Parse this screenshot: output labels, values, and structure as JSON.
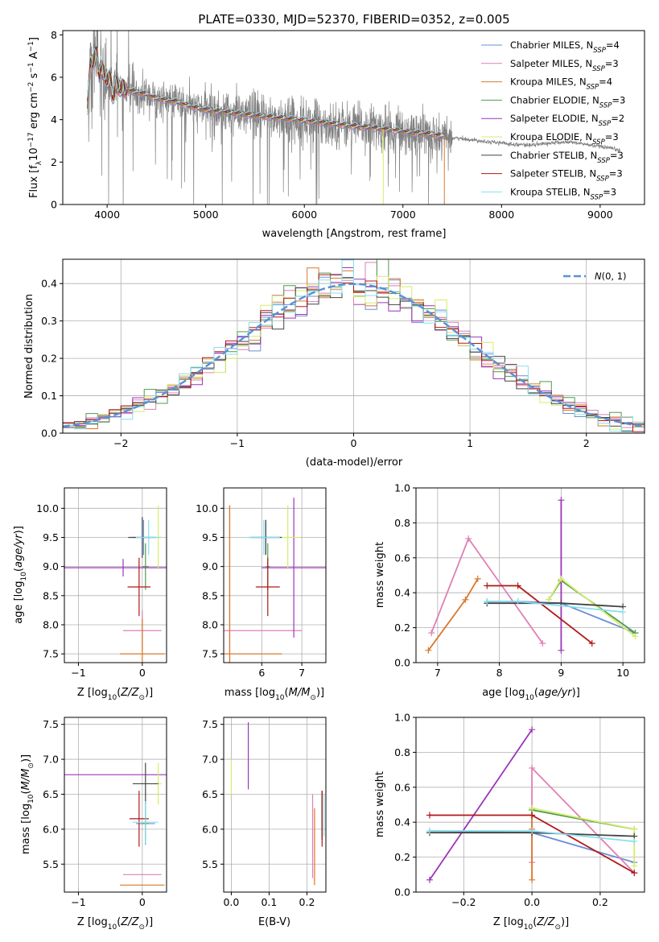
{
  "figure": {
    "title": "PLATE=0330, MJD=52370, FIBERID=0352, z=0.005"
  },
  "models": [
    {
      "name": "Chabrier MILES",
      "nssp": "4",
      "color": "#6b8fd6"
    },
    {
      "name": "Salpeter MILES",
      "nssp": "3",
      "color": "#e07fb5"
    },
    {
      "name": "Kroupa MILES",
      "nssp": "4",
      "color": "#d9782c"
    },
    {
      "name": "Chabrier ELODIE",
      "nssp": "3",
      "color": "#4f9b4f"
    },
    {
      "name": "Salpeter ELODIE",
      "nssp": "2",
      "color": "#9b35b8"
    },
    {
      "name": "Kroupa ELODIE",
      "nssp": "3",
      "color": "#d4ec6a"
    },
    {
      "name": "Chabrier STELIB",
      "nssp": "3",
      "color": "#444444"
    },
    {
      "name": "Salpeter STELIB",
      "nssp": "3",
      "color": "#b01818"
    },
    {
      "name": "Kroupa STELIB",
      "nssp": "3",
      "color": "#86dff0"
    }
  ],
  "chart_data": [
    {
      "id": "spectrum",
      "type": "line",
      "title": "PLATE=0330, MJD=52370, FIBERID=0352, z=0.005",
      "xlabel": "wavelength [Angstrom, rest frame]",
      "ylabel": "Flux [f_λ 10^-17 erg cm^-2 s^-1 A^-1]",
      "xlim": [
        3550,
        9450
      ],
      "ylim": [
        0,
        8.2
      ],
      "xticks": [
        4000,
        5000,
        6000,
        7000,
        8000,
        9000
      ],
      "yticks": [
        0,
        2,
        4,
        6,
        8
      ],
      "legend_position": "top-right",
      "data_color": "#808080",
      "data_range": [
        3800,
        9200
      ],
      "model_range": [
        3800,
        7420
      ],
      "continuum": {
        "x": [
          3800,
          3830,
          3900,
          3950,
          4000,
          4100,
          4200,
          4300,
          4400,
          4500,
          4700,
          4900,
          5100,
          5300,
          5500,
          5700,
          5900,
          6100,
          6300,
          6500,
          6700,
          6900,
          7100,
          7300,
          7500,
          7700,
          7900,
          8100,
          8300,
          8500,
          8700,
          8900,
          9100,
          9200
        ],
        "y": [
          4.6,
          6.6,
          7.1,
          6.3,
          5.9,
          5.6,
          5.4,
          5.3,
          5.2,
          5.0,
          4.85,
          4.55,
          4.4,
          4.3,
          4.2,
          4.1,
          4.0,
          3.9,
          3.8,
          3.7,
          3.6,
          3.5,
          3.4,
          3.3,
          3.15,
          3.05,
          2.95,
          2.85,
          2.8,
          2.9,
          2.95,
          2.8,
          2.65,
          2.55
        ]
      }
    },
    {
      "id": "residual-histogram",
      "type": "histogram",
      "xlabel": "(data-model)/error",
      "ylabel": "Normed distribution",
      "xlim": [
        -2.5,
        2.5
      ],
      "ylim": [
        0,
        0.465
      ],
      "xticks": [
        -2,
        -1,
        0,
        1,
        2
      ],
      "yticks": [
        0.0,
        0.1,
        0.2,
        0.3,
        0.4
      ],
      "bin_width": 0.1,
      "legend": {
        "label": "N(0,1)",
        "position": "top-right",
        "color": "#5b8fd9"
      },
      "reference_curve": "gaussian mean 0 sigma 1"
    },
    {
      "id": "age-vs-Z",
      "type": "scatter",
      "xlabel": "Z [log10(Z/Z⊙)]",
      "ylabel": "age [log10(age/yr)]",
      "xlim": [
        -1.22,
        0.38
      ],
      "ylim": [
        7.35,
        10.35
      ],
      "xticks": [
        -1,
        0
      ],
      "yticks": [
        7.5,
        8.0,
        8.5,
        9.0,
        9.5,
        10.0
      ],
      "points": [
        {
          "model": "Chabrier MILES",
          "x": 0.02,
          "y": 9.5,
          "dx": 0.18,
          "dy": 0.3
        },
        {
          "model": "Salpeter MILES",
          "x": 0.0,
          "y": 7.9,
          "dx": 0.3,
          "dy": 0.35
        },
        {
          "model": "Kroupa MILES",
          "x": 0.0,
          "y": 7.5,
          "dx": 0.35,
          "dy": 0.6
        },
        {
          "model": "Chabrier ELODIE",
          "x": 0.05,
          "y": 9.0,
          "dx": 0.05,
          "dy": 0.4
        },
        {
          "model": "Salpeter ELODIE",
          "x": -0.3,
          "y": 8.98,
          "dx": 0.92,
          "dy": 0.15
        },
        {
          "model": "Kroupa ELODIE",
          "x": 0.25,
          "y": 9.5,
          "dx": 0.08,
          "dy": 0.55
        },
        {
          "model": "Chabrier STELIB",
          "x": 0.0,
          "y": 9.5,
          "dx": 0.22,
          "dy": 0.35
        },
        {
          "model": "Salpeter STELIB",
          "x": -0.05,
          "y": 8.65,
          "dx": 0.18,
          "dy": 0.5
        },
        {
          "model": "Kroupa STELIB",
          "x": 0.1,
          "y": 9.5,
          "dx": 0.2,
          "dy": 0.3
        }
      ]
    },
    {
      "id": "age-vs-mass",
      "type": "scatter",
      "xlabel": "mass [log10(M/M⊙)]",
      "ylabel": "",
      "xlim": [
        5.05,
        7.6
      ],
      "ylim": [
        7.35,
        10.35
      ],
      "xticks": [
        6,
        7
      ],
      "yticks": [
        7.5,
        8.0,
        8.5,
        9.0,
        9.5,
        10.0
      ],
      "points": [
        {
          "model": "Chabrier MILES",
          "x": 6.1,
          "y": 9.5,
          "dx": 0.35,
          "dy": 0.3
        },
        {
          "model": "Salpeter MILES",
          "x": 5.2,
          "y": 7.9,
          "dx": 1.8,
          "dy": 2.15
        },
        {
          "model": "Kroupa MILES",
          "x": 5.2,
          "y": 7.5,
          "dx": 1.3,
          "dy": 2.55
        },
        {
          "model": "Chabrier ELODIE",
          "x": 6.15,
          "y": 9.0,
          "dx": 0.05,
          "dy": 0.4
        },
        {
          "model": "Salpeter ELODIE",
          "x": 6.8,
          "y": 8.98,
          "dx": 0.8,
          "dy": 1.2
        },
        {
          "model": "Kroupa ELODIE",
          "x": 6.65,
          "y": 9.5,
          "dx": 0.3,
          "dy": 0.55
        },
        {
          "model": "Chabrier STELIB",
          "x": 6.1,
          "y": 9.5,
          "dx": 0.4,
          "dy": 0.3
        },
        {
          "model": "Salpeter STELIB",
          "x": 6.15,
          "y": 8.65,
          "dx": 0.3,
          "dy": 0.5
        },
        {
          "model": "Kroupa STELIB",
          "x": 6.05,
          "y": 9.5,
          "dx": 0.4,
          "dy": 0.3
        }
      ]
    },
    {
      "id": "weight-vs-age",
      "type": "line",
      "xlabel": "age [log10(age/yr)]",
      "ylabel": "mass weight",
      "xlim": [
        6.65,
        10.35
      ],
      "ylim": [
        0.0,
        1.0
      ],
      "xticks": [
        7,
        8,
        9,
        10
      ],
      "yticks": [
        0.0,
        0.2,
        0.4,
        0.6,
        0.8,
        1.0
      ],
      "series": [
        {
          "model": "Chabrier MILES",
          "x": [
            7.8,
            8.3,
            9.0,
            10.2
          ],
          "y": [
            0.35,
            0.35,
            0.34,
            0.17
          ]
        },
        {
          "model": "Salpeter MILES",
          "x": [
            6.9,
            7.5,
            8.7
          ],
          "y": [
            0.17,
            0.71,
            0.11
          ]
        },
        {
          "model": "Kroupa MILES",
          "x": [
            6.85,
            7.45,
            7.65
          ],
          "y": [
            0.07,
            0.36,
            0.48
          ]
        },
        {
          "model": "Chabrier ELODIE",
          "x": [
            8.8,
            9.0,
            10.2
          ],
          "y": [
            0.36,
            0.47,
            0.17
          ]
        },
        {
          "model": "Salpeter ELODIE",
          "x": [
            9.0,
            9.0
          ],
          "y": [
            0.07,
            0.93
          ]
        },
        {
          "model": "Kroupa ELODIE",
          "x": [
            8.8,
            9.0,
            10.2
          ],
          "y": [
            0.36,
            0.48,
            0.15
          ]
        },
        {
          "model": "Chabrier STELIB",
          "x": [
            7.8,
            9.0,
            10.0
          ],
          "y": [
            0.34,
            0.34,
            0.32
          ]
        },
        {
          "model": "Salpeter STELIB",
          "x": [
            7.8,
            8.3,
            9.5
          ],
          "y": [
            0.44,
            0.44,
            0.11
          ]
        },
        {
          "model": "Kroupa STELIB",
          "x": [
            7.8,
            8.3,
            10.0
          ],
          "y": [
            0.35,
            0.35,
            0.29
          ]
        }
      ]
    },
    {
      "id": "mass-vs-Z",
      "type": "scatter",
      "xlabel": "Z [log10(Z/Z⊙)]",
      "ylabel": "mass [log10(M/M⊙)]",
      "xlim": [
        -1.22,
        0.38
      ],
      "ylim": [
        5.1,
        7.6
      ],
      "xticks": [
        -1,
        0
      ],
      "yticks": [
        5.5,
        6.0,
        6.5,
        7.0,
        7.5
      ],
      "points": [
        {
          "model": "Chabrier MILES",
          "x": 0.05,
          "y": 6.08,
          "dx": 0.15,
          "dy": 0.3
        },
        {
          "model": "Salpeter MILES",
          "x": 0.0,
          "y": 5.35,
          "dx": 0.3,
          "dy": 0.0
        },
        {
          "model": "Kroupa MILES",
          "x": 0.0,
          "y": 5.2,
          "dx": 0.35,
          "dy": 0.0
        },
        {
          "model": "Chabrier ELODIE",
          "x": 0.05,
          "y": 6.08,
          "dx": 0.05,
          "dy": 0.25
        },
        {
          "model": "Salpeter ELODIE",
          "x": -0.3,
          "y": 6.78,
          "dx": 0.92,
          "dy": 0.0
        },
        {
          "model": "Kroupa ELODIE",
          "x": 0.25,
          "y": 6.65,
          "dx": 0.05,
          "dy": 0.3
        },
        {
          "model": "Chabrier STELIB",
          "x": 0.05,
          "y": 6.65,
          "dx": 0.2,
          "dy": 0.3
        },
        {
          "model": "Salpeter STELIB",
          "x": -0.05,
          "y": 6.15,
          "dx": 0.15,
          "dy": 0.4
        },
        {
          "model": "Kroupa STELIB",
          "x": 0.05,
          "y": 6.1,
          "dx": 0.2,
          "dy": 0.3
        }
      ]
    },
    {
      "id": "mass-vs-ebv",
      "type": "scatter",
      "xlabel": "E(B-V)",
      "ylabel": "",
      "xlim": [
        -0.02,
        0.25
      ],
      "ylim": [
        5.1,
        7.6
      ],
      "xticks": [
        0.0,
        0.1,
        0.2
      ],
      "yticks": [
        5.5,
        6.0,
        6.5,
        7.0,
        7.5
      ],
      "points": [
        {
          "model": "Chabrier MILES",
          "x": 0.24,
          "y": 6.2,
          "dx": 0.0,
          "dy": 0.3
        },
        {
          "model": "Salpeter MILES",
          "x": 0.215,
          "y": 5.9,
          "dx": 0.0,
          "dy": 0.6
        },
        {
          "model": "Kroupa MILES",
          "x": 0.22,
          "y": 5.75,
          "dx": 0.0,
          "dy": 0.55
        },
        {
          "model": "Chabrier ELODIE",
          "x": 0.24,
          "y": 6.2,
          "dx": 0.0,
          "dy": 0.3
        },
        {
          "model": "Salpeter ELODIE",
          "x": 0.045,
          "y": 7.05,
          "dx": 0.0,
          "dy": 0.48
        },
        {
          "model": "Kroupa ELODIE",
          "x": 0.0,
          "y": 6.75,
          "dx": 0.0,
          "dy": 0.25
        },
        {
          "model": "Chabrier STELIB",
          "x": 0.24,
          "y": 6.2,
          "dx": 0.0,
          "dy": 0.35
        },
        {
          "model": "Salpeter STELIB",
          "x": 0.24,
          "y": 6.15,
          "dx": 0.0,
          "dy": 0.4
        },
        {
          "model": "Kroupa STELIB",
          "x": 0.245,
          "y": 6.2,
          "dx": 0.0,
          "dy": 0.3
        }
      ]
    },
    {
      "id": "weight-vs-Z",
      "type": "line",
      "xlabel": "Z [log10(Z/Z⊙)]",
      "ylabel": "mass weight",
      "xlim": [
        -0.34,
        0.33
      ],
      "ylim": [
        0.0,
        1.0
      ],
      "xticks": [
        -0.2,
        0.0,
        0.2
      ],
      "yticks": [
        0.0,
        0.2,
        0.4,
        0.6,
        0.8,
        1.0
      ],
      "series": [
        {
          "model": "Chabrier MILES",
          "x": [
            -0.3,
            0.0,
            0.3
          ],
          "y": [
            0.35,
            0.34,
            0.17
          ]
        },
        {
          "model": "Salpeter MILES",
          "x": [
            0.0,
            0.0,
            0.3
          ],
          "y": [
            0.17,
            0.71,
            0.11
          ]
        },
        {
          "model": "Kroupa MILES",
          "x": [
            0.0,
            0.0,
            0.0
          ],
          "y": [
            0.07,
            0.36,
            0.48
          ]
        },
        {
          "model": "Chabrier ELODIE",
          "x": [
            0.0,
            0.3
          ],
          "y": [
            0.47,
            0.36
          ]
        },
        {
          "model": "Salpeter ELODIE",
          "x": [
            -0.3,
            0.0
          ],
          "y": [
            0.07,
            0.93
          ]
        },
        {
          "model": "Kroupa ELODIE",
          "x": [
            0.0,
            0.3,
            0.3
          ],
          "y": [
            0.48,
            0.36,
            0.15
          ]
        },
        {
          "model": "Chabrier STELIB",
          "x": [
            -0.3,
            0.0,
            0.3
          ],
          "y": [
            0.34,
            0.34,
            0.32
          ]
        },
        {
          "model": "Salpeter STELIB",
          "x": [
            -0.3,
            0.0,
            0.3
          ],
          "y": [
            0.44,
            0.44,
            0.11
          ]
        },
        {
          "model": "Kroupa STELIB",
          "x": [
            -0.3,
            0.0,
            0.3
          ],
          "y": [
            0.35,
            0.35,
            0.29
          ]
        }
      ]
    }
  ]
}
